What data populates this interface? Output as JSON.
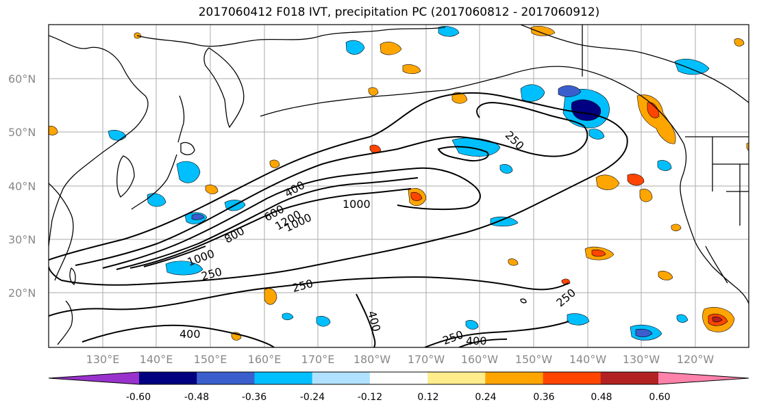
{
  "title": "2017060412 F018 IVT, precipitation PC (2017060812 - 2017060912)",
  "map": {
    "lat_ticks": [
      "60°N",
      "50°N",
      "40°N",
      "30°N",
      "20°N"
    ],
    "lon_ticks": [
      "130°E",
      "140°E",
      "150°E",
      "160°E",
      "170°E",
      "180°W",
      "170°W",
      "160°W",
      "150°W",
      "140°W",
      "130°W",
      "120°W"
    ],
    "gridlines": true,
    "lat_range": [
      10,
      70
    ],
    "lon_range": [
      120,
      250
    ],
    "contour_labels": [
      "250",
      "400",
      "600",
      "800",
      "1000",
      "1200",
      "1000",
      "250",
      "250",
      "1000",
      "400",
      "250",
      "250",
      "400",
      "400",
      "250"
    ]
  },
  "colorbar": {
    "colors": [
      "#9932cc",
      "#000080",
      "#3a5fcd",
      "#00bfff",
      "#b0e2ff",
      "#ffffff",
      "#ffec8b",
      "#ffa500",
      "#ff4500",
      "#b22222",
      "#ff82ab"
    ],
    "tick_labels": [
      "-0.60",
      "-0.48",
      "-0.36",
      "-0.24",
      "-0.12",
      "0.12",
      "0.24",
      "0.36",
      "0.48",
      "0.60"
    ]
  }
}
